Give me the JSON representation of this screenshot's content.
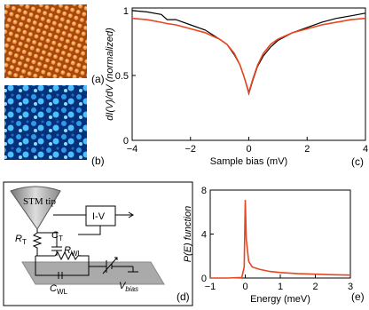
{
  "chart_data": [
    {
      "type": "line",
      "x_label": "Sample bias (mV)",
      "y_label": "dI(V)/dV (normalized)",
      "x": [
        -4,
        -3.5,
        -3,
        -2.8,
        -2.5,
        -2,
        -1.5,
        -1,
        -0.75,
        -0.5,
        -0.3,
        -0.15,
        0,
        0.15,
        0.3,
        0.5,
        0.75,
        1,
        1.5,
        2,
        2.5,
        3,
        3.5,
        4
      ],
      "series": [
        {
          "color": "#000000",
          "values": [
            1.0,
            0.99,
            0.97,
            0.93,
            0.93,
            0.89,
            0.85,
            0.78,
            0.74,
            0.66,
            0.58,
            0.48,
            0.36,
            0.47,
            0.57,
            0.65,
            0.72,
            0.77,
            0.83,
            0.87,
            0.91,
            0.94,
            0.96,
            0.98
          ]
        },
        {
          "color": "#e8461e",
          "values": [
            0.94,
            0.93,
            0.91,
            0.9,
            0.89,
            0.86,
            0.83,
            0.78,
            0.74,
            0.67,
            0.58,
            0.48,
            0.37,
            0.48,
            0.58,
            0.67,
            0.74,
            0.78,
            0.83,
            0.86,
            0.89,
            0.91,
            0.93,
            0.94
          ]
        }
      ],
      "xlim": [
        -4,
        4
      ],
      "ylim": [
        0,
        1.02
      ],
      "xticks": [
        {
          "value": -4,
          "label": "−4"
        },
        {
          "value": -2,
          "label": "−2"
        },
        0,
        2,
        4
      ],
      "yticks": [
        0,
        0.5,
        1
      ]
    },
    {
      "type": "line",
      "x_label": "Energy (meV)",
      "y_label": "P(E) function",
      "x": [
        -1,
        -0.5,
        -0.1,
        -0.03,
        0,
        0.03,
        0.1,
        0.2,
        0.4,
        0.7,
        1,
        1.5,
        2,
        2.5,
        3
      ],
      "series": [
        {
          "color": "#e8461e",
          "values": [
            0,
            0,
            0.05,
            1,
            7.1,
            3.5,
            1.5,
            1.0,
            0.8,
            0.6,
            0.5,
            0.4,
            0.35,
            0.3,
            0.27
          ]
        }
      ],
      "xlim": [
        -1,
        3
      ],
      "ylim": [
        0,
        8
      ],
      "xticks": [
        {
          "value": -1,
          "label": "−1"
        },
        0,
        1,
        2,
        3
      ],
      "yticks": [
        0,
        4,
        8
      ]
    }
  ],
  "panels": {
    "a": "(a)",
    "b": "(b)",
    "c": "(c)",
    "d": "(d)",
    "e": "(e)"
  },
  "diagram": {
    "tip": "STM tip",
    "iv": "I-V",
    "rt": "R",
    "rt_sub": "T",
    "ct": "C",
    "ct_sub": "T",
    "rwl": "R",
    "rwl_sub": "WL",
    "cwl": "C",
    "cwl_sub": "WL",
    "vb": "V",
    "vb_sub": "bias"
  }
}
